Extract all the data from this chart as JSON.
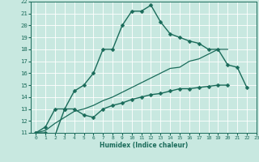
{
  "xlabel": "Humidex (Indice chaleur)",
  "bg_color": "#c8e8e0",
  "line_color": "#1a6b5a",
  "grid_color": "#ffffff",
  "xlim": [
    -0.5,
    23
  ],
  "ylim": [
    11,
    22
  ],
  "xticks": [
    0,
    1,
    2,
    3,
    4,
    5,
    6,
    7,
    8,
    9,
    10,
    11,
    12,
    13,
    14,
    15,
    16,
    17,
    18,
    19,
    20,
    21,
    22,
    23
  ],
  "yticks": [
    11,
    12,
    13,
    14,
    15,
    16,
    17,
    18,
    19,
    20,
    21,
    22
  ],
  "series": [
    {
      "x": [
        0,
        1,
        2,
        3,
        4,
        5,
        6,
        7,
        8,
        9,
        10,
        11,
        12,
        13,
        14,
        15,
        16,
        17,
        18,
        19,
        20,
        21,
        22
      ],
      "y": [
        11,
        11.5,
        13,
        13,
        14.5,
        15,
        16,
        18,
        18,
        20,
        21.2,
        21.2,
        21.7,
        20.3,
        19.3,
        19,
        18.7,
        18.5,
        18,
        18,
        16.7,
        16.5,
        14.8
      ],
      "marker": "D",
      "markersize": 2.5,
      "linewidth": 1.0
    },
    {
      "x": [
        0,
        1,
        2,
        3,
        4,
        5,
        6,
        7,
        8,
        9,
        10,
        11,
        12,
        13,
        14,
        15,
        16,
        17,
        18,
        19,
        20
      ],
      "y": [
        11,
        11,
        10.8,
        13,
        13,
        12.5,
        12.3,
        13,
        13.3,
        13.5,
        13.8,
        14,
        14.2,
        14.3,
        14.5,
        14.7,
        14.7,
        14.8,
        14.9,
        15.0,
        15.0
      ],
      "marker": "D",
      "markersize": 2.5,
      "linewidth": 1.0
    },
    {
      "x": [
        0,
        1,
        2,
        3,
        4,
        5,
        6,
        7,
        8,
        9,
        10,
        11,
        12,
        13,
        14,
        15,
        16,
        17,
        18,
        19,
        20
      ],
      "y": [
        11,
        11.2,
        11.8,
        12.3,
        12.8,
        13,
        13.3,
        13.7,
        14.0,
        14.4,
        14.8,
        15.2,
        15.6,
        16.0,
        16.4,
        16.5,
        17.0,
        17.2,
        17.6,
        18.0,
        18.0
      ],
      "marker": null,
      "markersize": 0,
      "linewidth": 0.9
    }
  ]
}
